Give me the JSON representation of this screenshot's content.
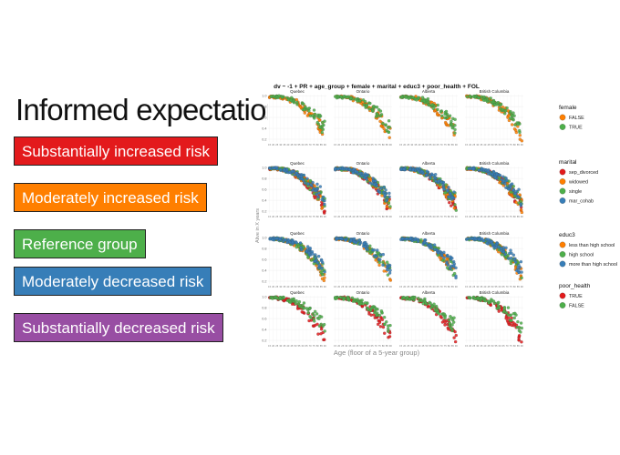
{
  "left_title": "Informed expectation",
  "risk_legend": [
    {
      "label": "Substantially increased risk",
      "color": "#e31a1c"
    },
    {
      "label": "Moderately increased risk",
      "color": "#ff7f00"
    },
    {
      "label": "Reference group",
      "color": "#4daf4a"
    },
    {
      "label": "Moderately decreased risk",
      "color": "#377eb8"
    },
    {
      "label": "Substantially decreased risk",
      "color": "#984ea3"
    }
  ],
  "chart_data": {
    "type": "scatter",
    "title": "dv ~ -1 + PR + age_group + female + marital + educ3 + poor_health + FOL",
    "xlabel": "Age (floor of a 5-year group)",
    "ylabel": "Alive in X years",
    "facets": [
      "Quebec",
      "Ontario",
      "Alberta",
      "British Columbia"
    ],
    "x_ticks": [
      "15",
      "20",
      "25",
      "30",
      "35",
      "40",
      "45",
      "50",
      "55",
      "60",
      "65",
      "70",
      "75",
      "80",
      "85",
      "90"
    ],
    "y_ticks": [
      0.2,
      0.4,
      0.6,
      0.8,
      1.0
    ],
    "ylim": [
      0.15,
      1.02
    ],
    "grid": true,
    "legend_position": "right",
    "rows": [
      {
        "variable": "female",
        "levels": [
          {
            "name": "FALSE",
            "color": "#ff7f00",
            "x_from": 15,
            "x_to": 90,
            "y_start": 1.0,
            "y_end": 0.45
          },
          {
            "name": "TRUE",
            "color": "#4daf4a",
            "x_from": 15,
            "x_to": 90,
            "y_start": 1.0,
            "y_end": 0.55
          }
        ]
      },
      {
        "variable": "marital",
        "levels": [
          {
            "name": "sep_divorced",
            "color": "#e31a1c",
            "x_from": 15,
            "x_to": 90,
            "y_start": 1.0,
            "y_end": 0.42
          },
          {
            "name": "widowed",
            "color": "#ff7f00",
            "x_from": 15,
            "x_to": 90,
            "y_start": 1.0,
            "y_end": 0.46
          },
          {
            "name": "single",
            "color": "#4daf4a",
            "x_from": 15,
            "x_to": 90,
            "y_start": 1.0,
            "y_end": 0.5
          },
          {
            "name": "mar_cohab",
            "color": "#377eb8",
            "x_from": 15,
            "x_to": 90,
            "y_start": 1.0,
            "y_end": 0.55
          }
        ]
      },
      {
        "variable": "educ3",
        "levels": [
          {
            "name": "less than high school",
            "color": "#ff7f00",
            "x_from": 15,
            "x_to": 90,
            "y_start": 1.0,
            "y_end": 0.45
          },
          {
            "name": "high school",
            "color": "#4daf4a",
            "x_from": 15,
            "x_to": 90,
            "y_start": 1.0,
            "y_end": 0.5
          },
          {
            "name": "more than high school",
            "color": "#377eb8",
            "x_from": 15,
            "x_to": 90,
            "y_start": 1.0,
            "y_end": 0.56
          }
        ]
      },
      {
        "variable": "poor_health",
        "levels": [
          {
            "name": "TRUE",
            "color": "#e31a1c",
            "x_from": 15,
            "x_to": 90,
            "y_start": 1.0,
            "y_end": 0.38
          },
          {
            "name": "FALSE",
            "color": "#4daf4a",
            "x_from": 15,
            "x_to": 90,
            "y_start": 1.0,
            "y_end": 0.58
          }
        ]
      }
    ]
  }
}
